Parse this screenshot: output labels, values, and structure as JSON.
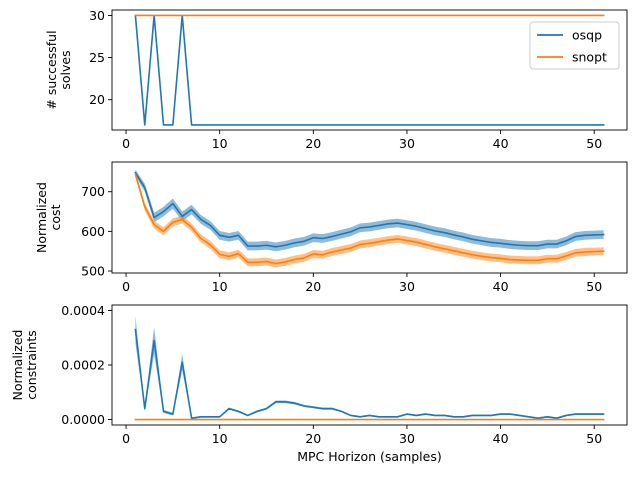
{
  "chart_data": [
    {
      "type": "line",
      "ylabel": [
        "# successful",
        "solves"
      ],
      "xlabel": "",
      "xlim": [
        -1.5,
        53.5
      ],
      "ylim": [
        16.4,
        30.65
      ],
      "xticks": [
        0,
        10,
        20,
        30,
        40,
        50
      ],
      "yticks": [
        20,
        25,
        30
      ],
      "legend": {
        "placement": "top-right"
      },
      "series": [
        {
          "name": "osqp",
          "color": "#1f77b4",
          "x": [
            1,
            2,
            3,
            4,
            5,
            6,
            7,
            8,
            9,
            10,
            11,
            12,
            13,
            14,
            15,
            16,
            17,
            18,
            19,
            20,
            21,
            22,
            23,
            24,
            25,
            26,
            27,
            28,
            29,
            30,
            31,
            32,
            33,
            34,
            35,
            36,
            37,
            38,
            39,
            40,
            41,
            42,
            43,
            44,
            45,
            46,
            47,
            48,
            49,
            50,
            51
          ],
          "y": [
            30,
            17,
            30,
            17,
            17,
            30,
            17,
            17,
            17,
            17,
            17,
            17,
            17,
            17,
            17,
            17,
            17,
            17,
            17,
            17,
            17,
            17,
            17,
            17,
            17,
            17,
            17,
            17,
            17,
            17,
            17,
            17,
            17,
            17,
            17,
            17,
            17,
            17,
            17,
            17,
            17,
            17,
            17,
            17,
            17,
            17,
            17,
            17,
            17,
            17,
            17
          ]
        },
        {
          "name": "snopt",
          "color": "#ff7f0e",
          "x": [
            1,
            2,
            3,
            4,
            5,
            6,
            7,
            8,
            9,
            10,
            11,
            12,
            13,
            14,
            15,
            16,
            17,
            18,
            19,
            20,
            21,
            22,
            23,
            24,
            25,
            26,
            27,
            28,
            29,
            30,
            31,
            32,
            33,
            34,
            35,
            36,
            37,
            38,
            39,
            40,
            41,
            42,
            43,
            44,
            45,
            46,
            47,
            48,
            49,
            50,
            51
          ],
          "y": [
            30,
            30,
            30,
            30,
            30,
            30,
            30,
            30,
            30,
            30,
            30,
            30,
            30,
            30,
            30,
            30,
            30,
            30,
            30,
            30,
            30,
            30,
            30,
            30,
            30,
            30,
            30,
            30,
            30,
            30,
            30,
            30,
            30,
            30,
            30,
            30,
            30,
            30,
            30,
            30,
            30,
            30,
            30,
            30,
            30,
            30,
            30,
            30,
            30,
            30,
            30
          ]
        }
      ]
    },
    {
      "type": "line",
      "ylabel": [
        "Normalized",
        "cost"
      ],
      "xlabel": "",
      "xlim": [
        -1.5,
        53.5
      ],
      "ylim": [
        495,
        775
      ],
      "xticks": [
        0,
        10,
        20,
        30,
        40,
        50
      ],
      "yticks": [
        500,
        600,
        700
      ],
      "series": [
        {
          "name": "",
          "color": "#1f77b4",
          "x": [
            1,
            2,
            3,
            4,
            5,
            6,
            7,
            8,
            9,
            10,
            11,
            12,
            13,
            14,
            15,
            16,
            17,
            18,
            19,
            20,
            21,
            22,
            23,
            24,
            25,
            26,
            27,
            28,
            29,
            30,
            31,
            32,
            33,
            34,
            35,
            36,
            37,
            38,
            39,
            40,
            41,
            42,
            43,
            44,
            45,
            46,
            47,
            48,
            49,
            50,
            51
          ],
          "y": [
            748,
            710,
            635,
            650,
            670,
            638,
            655,
            630,
            615,
            590,
            585,
            590,
            563,
            563,
            565,
            561,
            565,
            571,
            575,
            584,
            582,
            587,
            593,
            599,
            609,
            611,
            615,
            619,
            621,
            617,
            613,
            607,
            601,
            597,
            591,
            586,
            580,
            576,
            572,
            570,
            567,
            565,
            564,
            564,
            568,
            568,
            576,
            587,
            590,
            591,
            592
          ],
          "band": [
            8,
            10,
            12,
            12,
            13,
            12,
            12,
            11,
            11,
            11,
            11,
            11,
            11,
            11,
            11,
            11,
            11,
            11,
            11,
            11,
            11,
            11,
            11,
            11,
            11,
            11,
            11,
            11,
            11,
            11,
            11,
            11,
            11,
            11,
            11,
            11,
            11,
            11,
            11,
            11,
            11,
            11,
            11,
            11,
            11,
            11,
            11,
            11,
            11,
            11,
            11
          ]
        },
        {
          "name": "",
          "color": "#ff7f0e",
          "x": [
            1,
            2,
            3,
            4,
            5,
            6,
            7,
            8,
            9,
            10,
            11,
            12,
            13,
            14,
            15,
            16,
            17,
            18,
            19,
            20,
            21,
            22,
            23,
            24,
            25,
            26,
            27,
            28,
            29,
            30,
            31,
            32,
            33,
            34,
            35,
            36,
            37,
            38,
            39,
            40,
            41,
            42,
            43,
            44,
            45,
            46,
            47,
            48,
            49,
            50,
            51
          ],
          "y": [
            744,
            662,
            617,
            600,
            623,
            630,
            610,
            582,
            566,
            542,
            537,
            544,
            522,
            522,
            524,
            519,
            523,
            529,
            533,
            543,
            541,
            548,
            553,
            558,
            567,
            570,
            574,
            578,
            581,
            577,
            573,
            567,
            561,
            556,
            551,
            546,
            541,
            537,
            534,
            532,
            529,
            528,
            527,
            527,
            531,
            531,
            538,
            546,
            548,
            549,
            550
          ],
          "band": [
            8,
            9,
            10,
            10,
            10,
            10,
            10,
            10,
            10,
            10,
            10,
            10,
            10,
            10,
            10,
            10,
            10,
            10,
            10,
            10,
            10,
            10,
            10,
            10,
            10,
            10,
            10,
            10,
            10,
            10,
            10,
            10,
            10,
            10,
            10,
            10,
            10,
            10,
            10,
            10,
            10,
            10,
            10,
            10,
            10,
            10,
            10,
            10,
            10,
            10,
            10
          ]
        }
      ]
    },
    {
      "type": "line",
      "ylabel": [
        "Normalized",
        "constraints"
      ],
      "xlabel": "MPC Horizon (samples)",
      "xlim": [
        -1.5,
        53.5
      ],
      "ylim": [
        -2e-05,
        0.00042
      ],
      "xticks": [
        0,
        10,
        20,
        30,
        40,
        50
      ],
      "yticks": [
        0.0,
        0.0002,
        0.0004
      ],
      "ytick_labels": [
        "0.0000",
        "0.0002",
        "0.0004"
      ],
      "series": [
        {
          "name": "",
          "color": "#1f77b4",
          "x": [
            1,
            2,
            3,
            4,
            5,
            6,
            7,
            8,
            9,
            10,
            11,
            12,
            13,
            14,
            15,
            16,
            17,
            18,
            19,
            20,
            21,
            22,
            23,
            24,
            25,
            26,
            27,
            28,
            29,
            30,
            31,
            32,
            33,
            34,
            35,
            36,
            37,
            38,
            39,
            40,
            41,
            42,
            43,
            44,
            45,
            46,
            47,
            48,
            49,
            50,
            51
          ],
          "y": [
            0.00033,
            4e-05,
            0.00029,
            3e-05,
            2e-05,
            0.00021,
            5e-06,
            1e-05,
            1e-05,
            1e-05,
            4e-05,
            3e-05,
            1.5e-05,
            3e-05,
            4e-05,
            6.5e-05,
            6.5e-05,
            6e-05,
            5e-05,
            4.5e-05,
            4e-05,
            4e-05,
            3e-05,
            1.5e-05,
            1e-05,
            1.5e-05,
            1e-05,
            1e-05,
            1e-05,
            2e-05,
            1.5e-05,
            2e-05,
            1.5e-05,
            1.5e-05,
            1e-05,
            1e-05,
            1.5e-05,
            1.5e-05,
            1.5e-05,
            2e-05,
            2e-05,
            1.5e-05,
            1e-05,
            5e-06,
            1e-05,
            5e-06,
            1.5e-05,
            2e-05,
            2e-05,
            2e-05,
            2e-05
          ],
          "band": [
            5e-05,
            8e-06,
            5e-05,
            6e-06,
            5e-06,
            3e-05,
            3e-06,
            3e-06,
            3e-06,
            3e-06,
            4e-06,
            4e-06,
            3e-06,
            4e-06,
            4e-06,
            5e-06,
            5e-06,
            5e-06,
            4e-06,
            4e-06,
            4e-06,
            4e-06,
            3e-06,
            3e-06,
            3e-06,
            3e-06,
            3e-06,
            3e-06,
            3e-06,
            3e-06,
            3e-06,
            3e-06,
            3e-06,
            3e-06,
            3e-06,
            3e-06,
            3e-06,
            3e-06,
            3e-06,
            3e-06,
            3e-06,
            3e-06,
            3e-06,
            3e-06,
            3e-06,
            3e-06,
            3e-06,
            3e-06,
            3e-06,
            3e-06,
            3e-06
          ]
        },
        {
          "name": "",
          "color": "#ff7f0e",
          "x": [
            1,
            2,
            3,
            4,
            5,
            6,
            7,
            8,
            9,
            10,
            11,
            12,
            13,
            14,
            15,
            16,
            17,
            18,
            19,
            20,
            21,
            22,
            23,
            24,
            25,
            26,
            27,
            28,
            29,
            30,
            31,
            32,
            33,
            34,
            35,
            36,
            37,
            38,
            39,
            40,
            41,
            42,
            43,
            44,
            45,
            46,
            47,
            48,
            49,
            50,
            51
          ],
          "y": [
            0,
            0,
            0,
            0,
            0,
            0,
            0,
            0,
            0,
            0,
            0,
            0,
            0,
            0,
            0,
            0,
            0,
            0,
            0,
            0,
            0,
            0,
            0,
            0,
            0,
            0,
            0,
            0,
            0,
            0,
            0,
            0,
            0,
            0,
            0,
            0,
            0,
            0,
            0,
            0,
            0,
            0,
            0,
            0,
            0,
            0,
            0,
            0,
            0,
            0,
            0
          ]
        }
      ]
    }
  ]
}
